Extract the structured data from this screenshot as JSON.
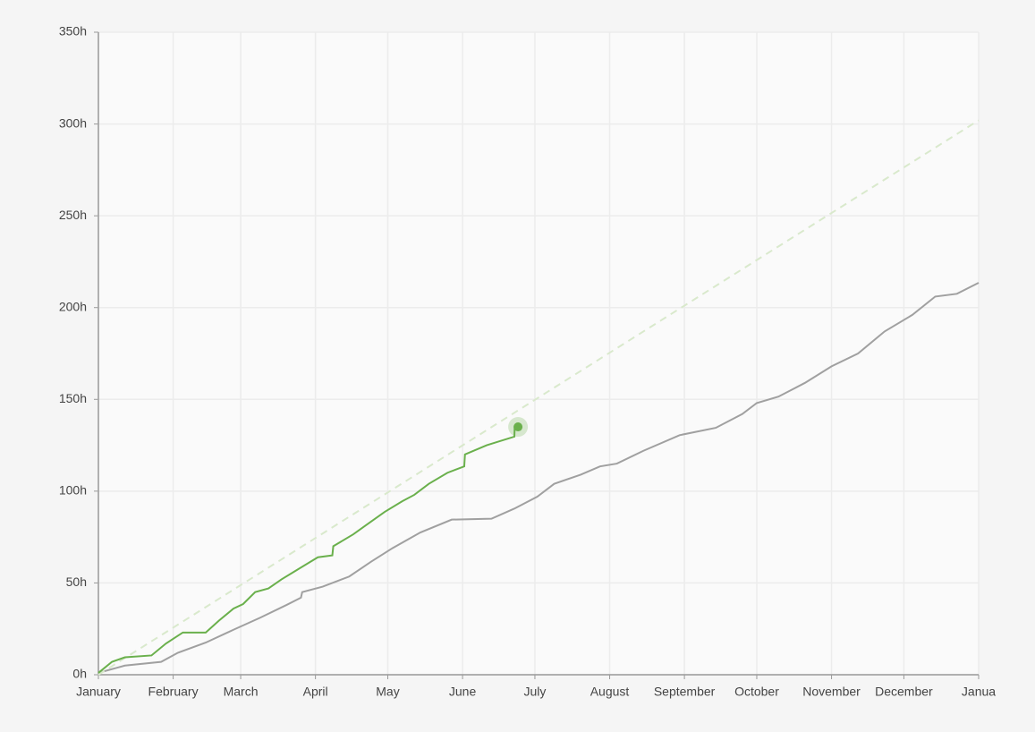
{
  "chart_data": {
    "type": "line",
    "xlim": [
      0,
      365
    ],
    "xticks": [
      {
        "value": 0,
        "label": "January"
      },
      {
        "value": 31,
        "label": "February"
      },
      {
        "value": 59,
        "label": "March"
      },
      {
        "value": 90,
        "label": "April"
      },
      {
        "value": 120,
        "label": "May"
      },
      {
        "value": 151,
        "label": "June"
      },
      {
        "value": 181,
        "label": "July"
      },
      {
        "value": 212,
        "label": "August"
      },
      {
        "value": 243,
        "label": "September"
      },
      {
        "value": 273,
        "label": "October"
      },
      {
        "value": 304,
        "label": "November"
      },
      {
        "value": 334,
        "label": "December"
      },
      {
        "value": 365,
        "label": "Janua"
      }
    ],
    "ylim": [
      0,
      350
    ],
    "yticks": [
      {
        "value": 0,
        "label": "0h"
      },
      {
        "value": 50,
        "label": "50h"
      },
      {
        "value": 100,
        "label": "100h"
      },
      {
        "value": 150,
        "label": "150h"
      },
      {
        "value": 200,
        "label": "200h"
      },
      {
        "value": 250,
        "label": "250h"
      },
      {
        "value": 300,
        "label": "300h"
      },
      {
        "value": 350,
        "label": "350h"
      }
    ],
    "grid": true,
    "series": [
      {
        "color": "#a0a0a0",
        "x": [
          0,
          11,
          26,
          33,
          44.5,
          56,
          67,
          78,
          84,
          84.5,
          93,
          104,
          113,
          122,
          133.5,
          146.5,
          163,
          172.5,
          182,
          189,
          200,
          208,
          215,
          226,
          241,
          256,
          267,
          273,
          282,
          293,
          304,
          315,
          326,
          337.5,
          347,
          356,
          365
        ],
        "values": [
          1,
          5,
          7,
          12,
          17.5,
          24.5,
          31,
          38,
          42,
          45,
          48,
          53.5,
          61.5,
          69,
          77.5,
          84.5,
          85,
          90.5,
          97,
          104,
          109,
          113.5,
          115,
          122,
          130.5,
          134.5,
          142,
          148,
          151.5,
          159,
          168,
          175,
          187,
          196,
          206,
          207.5,
          213.5
        ]
      },
      {
        "color": "#d9e9cc",
        "dashed": true,
        "x": [
          0,
          365
        ],
        "values": [
          0,
          302
        ]
      },
      {
        "color": "#6ab04c",
        "x": [
          0,
          5.6,
          11,
          22,
          28,
          35,
          44.5,
          50,
          56,
          60,
          65,
          70.5,
          76,
          81.6,
          91,
          97,
          97.4,
          105.7,
          111,
          118.7,
          126,
          131,
          137,
          144.7,
          151.7,
          152,
          161,
          172.5,
          172.6,
          174
        ],
        "values": [
          1,
          7,
          9.5,
          10.5,
          17,
          23,
          23,
          29.5,
          36,
          38.5,
          45,
          47,
          52,
          56.5,
          64,
          65,
          70,
          76.5,
          81.5,
          88.7,
          94.5,
          98,
          104,
          110,
          113.5,
          120,
          125,
          129.7,
          135,
          135.5
        ],
        "marker": {
          "x": 174,
          "y": 135
        }
      }
    ]
  }
}
